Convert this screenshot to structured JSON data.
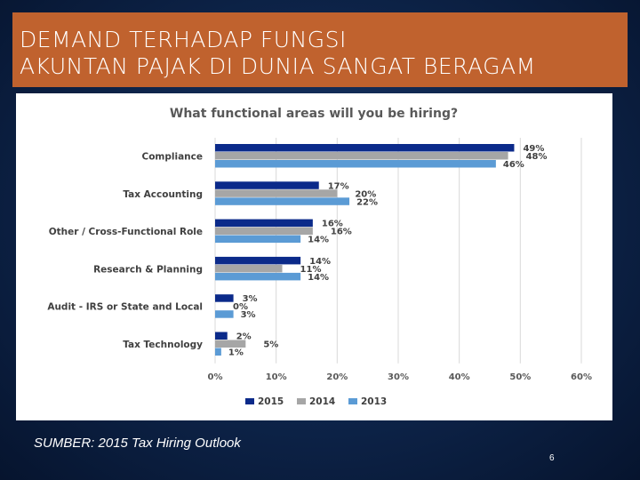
{
  "header": {
    "title_line1": "DEMAND TERHADAP FUNGSI",
    "title_line2": "AKUNTAN PAJAK DI DUNIA SANGAT BERAGAM"
  },
  "footer": {
    "source": "SUMBER: 2015 Tax Hiring Outlook",
    "page_number": "6"
  },
  "colors": {
    "title_bar": "#c0622e",
    "series_2015": "#0b2a8a",
    "series_2014": "#a6a6a6",
    "series_2013": "#5b9bd5"
  },
  "chart_data": {
    "type": "bar",
    "orientation": "horizontal",
    "title": "What functional areas will you be hiring?",
    "categories": [
      "Compliance",
      "Tax Accounting",
      "Other / Cross-Functional Role",
      "Research & Planning",
      "Audit - IRS or State and Local",
      "Tax Technology"
    ],
    "series": [
      {
        "name": "2015",
        "values": [
          49,
          17,
          16,
          14,
          3,
          2
        ]
      },
      {
        "name": "2014",
        "values": [
          48,
          20,
          16,
          11,
          0,
          5
        ]
      },
      {
        "name": "2013",
        "values": [
          46,
          22,
          14,
          14,
          3,
          1
        ]
      }
    ],
    "xlim": [
      0,
      60
    ],
    "xticks": [
      "0%",
      "10%",
      "20%",
      "30%",
      "40%",
      "50%",
      "60%"
    ],
    "value_suffix": "%",
    "grid": true,
    "legend_position": "bottom"
  }
}
